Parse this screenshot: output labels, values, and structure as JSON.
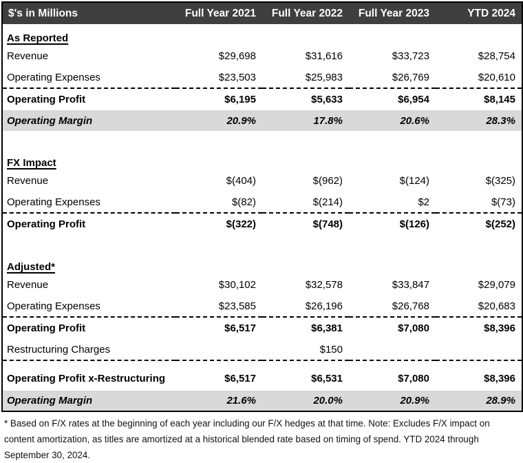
{
  "colors": {
    "header_bg": "#3f3f3f",
    "header_text": "#ffffff",
    "margin_row_bg": "#d9d9d9",
    "border": "#000000"
  },
  "chart_data": {
    "type": "table",
    "title": "$'s in Millions",
    "columns": [
      "Full Year 2021",
      "Full Year 2022",
      "Full Year 2023",
      "YTD 2024"
    ],
    "rows": [
      {
        "type": "section",
        "label": "As Reported",
        "values": [
          "",
          "",
          "",
          ""
        ]
      },
      {
        "type": "data",
        "label": "Revenue",
        "values": [
          "$29,698",
          "$31,616",
          "$33,723",
          "$28,754"
        ]
      },
      {
        "type": "data",
        "label": "Operating Expenses",
        "values": [
          "$23,503",
          "$25,983",
          "$26,769",
          "$20,610"
        ]
      },
      {
        "type": "total",
        "label": "Operating Profit",
        "values": [
          "$6,195",
          "$5,633",
          "$6,954",
          "$8,145"
        ]
      },
      {
        "type": "margin",
        "label": "Operating Margin",
        "values": [
          "20.9%",
          "17.8%",
          "20.6%",
          "28.3%"
        ]
      },
      {
        "type": "spacer",
        "label": "",
        "values": [
          "",
          "",
          "",
          ""
        ]
      },
      {
        "type": "section",
        "label": "FX Impact",
        "values": [
          "",
          "",
          "",
          ""
        ]
      },
      {
        "type": "data",
        "label": "Revenue",
        "values": [
          "$(404)",
          "$(962)",
          "$(124)",
          "$(325)"
        ]
      },
      {
        "type": "data",
        "label": "Operating Expenses",
        "values": [
          "$(82)",
          "$(214)",
          "$2",
          "$(73)"
        ]
      },
      {
        "type": "total",
        "label": "Operating Profit",
        "values": [
          "$(322)",
          "$(748)",
          "$(126)",
          "$(252)"
        ]
      },
      {
        "type": "spacer",
        "label": "",
        "values": [
          "",
          "",
          "",
          ""
        ]
      },
      {
        "type": "section",
        "label": "Adjusted*",
        "values": [
          "",
          "",
          "",
          ""
        ]
      },
      {
        "type": "data",
        "label": "Revenue",
        "values": [
          "$30,102",
          "$32,578",
          "$33,847",
          "$29,079"
        ]
      },
      {
        "type": "data",
        "label": "Operating Expenses",
        "values": [
          "$23,585",
          "$26,196",
          "$26,768",
          "$20,683"
        ]
      },
      {
        "type": "total",
        "label": "Operating Profit",
        "values": [
          "$6,517",
          "$6,381",
          "$7,080",
          "$8,396"
        ]
      },
      {
        "type": "data",
        "label": "Restructuring Charges",
        "values": [
          "",
          "$150",
          "",
          ""
        ]
      },
      {
        "type": "total-tall",
        "label": "Operating Profit x-Restructuring",
        "values": [
          "$6,517",
          "$6,531",
          "$7,080",
          "$8,396"
        ]
      },
      {
        "type": "margin",
        "label": "Operating Margin",
        "values": [
          "21.6%",
          "20.0%",
          "20.9%",
          "28.9%"
        ]
      }
    ]
  },
  "footnote": "* Based on F/X rates at the beginning of each year including our F/X hedges at that time. Note: Excludes F/X impact on content amortization, as titles are amortized at a historical blended rate based on timing of spend. YTD 2024 through September 30, 2024."
}
